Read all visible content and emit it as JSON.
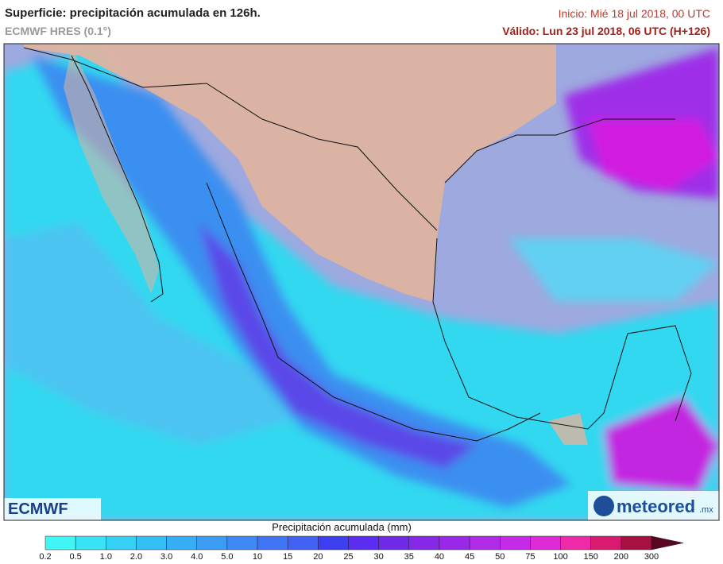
{
  "header": {
    "title": "Superficie: precipitación acumulada en 126h.",
    "model": "ECMWF HRES (0.1°)",
    "init": "Inicio: Mié 18 jul 2018, 00 UTC",
    "valid": "Válido: Lun 23 jul 2018, 06 UTC (H+126)"
  },
  "logos": {
    "left": "ECMWF",
    "right": "meteored",
    "right_suffix": ".mx"
  },
  "legend": {
    "title": "Precipitación acumulada (mm)",
    "ticks": [
      "0.2",
      "0.5",
      "1.0",
      "2.0",
      "3.0",
      "4.0",
      "5.0",
      "10",
      "15",
      "20",
      "25",
      "30",
      "35",
      "40",
      "45",
      "50",
      "75",
      "100",
      "150",
      "200",
      "300"
    ]
  }
}
